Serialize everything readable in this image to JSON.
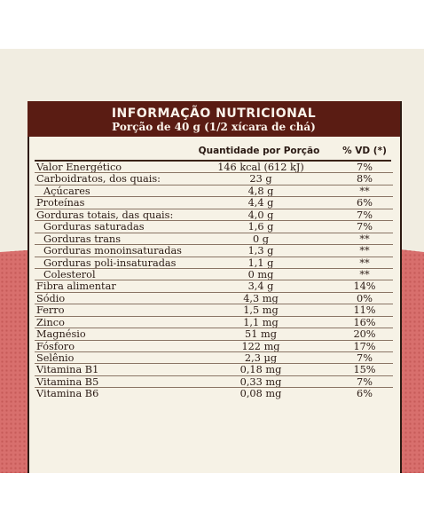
{
  "panel": {
    "title": "INFORMAÇÃO NUTRICIONAL",
    "serving": "Porção de 40 g (1/2 xícara de chá)",
    "col_quantity": "Quantidade por Porção",
    "col_vd": "% VD (*)"
  },
  "rows": [
    {
      "label": "Valor Energético",
      "value": "146 kcal (612 kJ)",
      "vd": "7%",
      "indent": false
    },
    {
      "label": "Carboidratos, dos quais:",
      "value": "23 g",
      "vd": "8%",
      "indent": false
    },
    {
      "label": "Açúcares",
      "value": "4,8 g",
      "vd": "**",
      "indent": true
    },
    {
      "label": "Proteínas",
      "value": "4,4 g",
      "vd": "6%",
      "indent": false
    },
    {
      "label": "Gorduras totais, das quais:",
      "value": "4,0 g",
      "vd": "7%",
      "indent": false
    },
    {
      "label": "Gorduras saturadas",
      "value": "1,6 g",
      "vd": "7%",
      "indent": true
    },
    {
      "label": "Gorduras trans",
      "value": "0 g",
      "vd": "**",
      "indent": true
    },
    {
      "label": "Gorduras monoinsaturadas",
      "value": "1,3 g",
      "vd": "**",
      "indent": true
    },
    {
      "label": "Gorduras poli-insaturadas",
      "value": "1,1 g",
      "vd": "**",
      "indent": true
    },
    {
      "label": "Colesterol",
      "value": "0 mg",
      "vd": "**",
      "indent": true
    },
    {
      "label": "Fibra alimentar",
      "value": "3,4 g",
      "vd": "14%",
      "indent": false
    },
    {
      "label": "Sódio",
      "value": "4,3 mg",
      "vd": "0%",
      "indent": false
    },
    {
      "label": "Ferro",
      "value": "1,5 mg",
      "vd": "11%",
      "indent": false
    },
    {
      "label": "Zinco",
      "value": "1,1 mg",
      "vd": "16%",
      "indent": false
    },
    {
      "label": "Magnésio",
      "value": "51 mg",
      "vd": "20%",
      "indent": false
    },
    {
      "label": "Fósforo",
      "value": "122 mg",
      "vd": "17%",
      "indent": false
    },
    {
      "label": "Selênio",
      "value": "2,3 µg",
      "vd": "7%",
      "indent": false
    },
    {
      "label": "Vitamina B1",
      "value": "0,18 mg",
      "vd": "15%",
      "indent": false
    },
    {
      "label": "Vitamina B5",
      "value": "0,33 mg",
      "vd": "7%",
      "indent": false
    },
    {
      "label": "Vitamina B6",
      "value": "0,08 mg",
      "vd": "6%",
      "indent": false
    }
  ],
  "colors": {
    "header_bg": "#5a1c13",
    "card_bg": "#f6f2e6",
    "background_cream": "#f1ede1",
    "background_red": "#d86f6d"
  }
}
